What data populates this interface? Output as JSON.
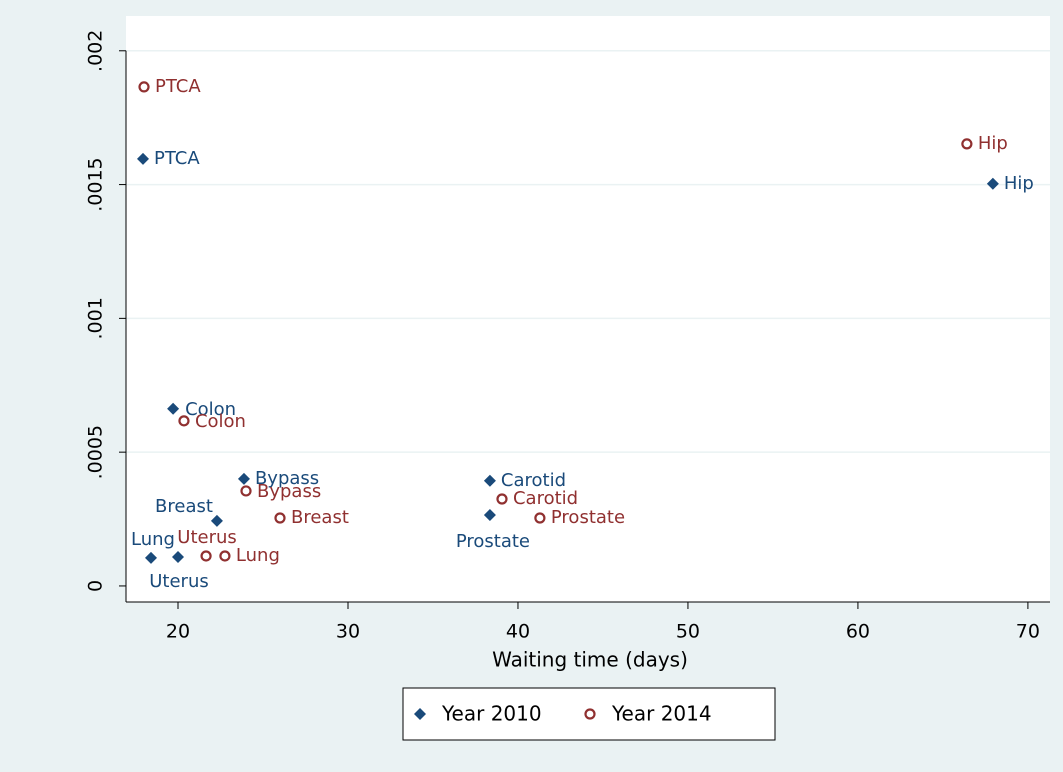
{
  "chart_data": {
    "type": "scatter",
    "x_label": "Waiting time (days)",
    "xlim": [
      16.94,
      71.3
    ],
    "xticks": [
      20,
      30,
      40,
      50,
      60,
      70
    ],
    "ylim": [
      -6e-05,
      0.00213
    ],
    "yticks": [
      {
        "value": 0,
        "label": "0"
      },
      {
        "value": 0.0005,
        "label": ".0005"
      },
      {
        "value": 0.001,
        "label": ".001"
      },
      {
        "value": 0.0015,
        "label": ".0015"
      },
      {
        "value": 0.002,
        "label": ".002"
      }
    ],
    "grid": true,
    "legend": "bottom",
    "series": [
      {
        "name": "Year 2010",
        "color": "#1a4a7a",
        "marker": "diamond",
        "labels": [
          "PTCA",
          "Hip",
          "Colon",
          "Bypass",
          "Carotid",
          "Breast",
          "Prostate",
          "Lung",
          "Uterus"
        ],
        "x": [
          17.94,
          67.94,
          19.71,
          23.88,
          38.35,
          22.29,
          38.35,
          18.41,
          20.0
        ],
        "values": [
          0.001596,
          0.001503,
          0.000662,
          0.0004,
          0.000393,
          0.000243,
          0.000265,
          0.000105,
          0.000108
        ]
      },
      {
        "name": "Year 2014",
        "color": "#903030",
        "marker": "circle",
        "labels": [
          "PTCA",
          "Hip",
          "Colon",
          "Bypass",
          "Carotid",
          "Breast",
          "Prostate",
          "Lung",
          "Uterus"
        ],
        "x": [
          18.0,
          66.41,
          20.35,
          24.0,
          39.06,
          26.0,
          41.29,
          22.76,
          21.65
        ],
        "values": [
          0.001865,
          0.001652,
          0.000617,
          0.000355,
          0.000325,
          0.000254,
          0.000254,
          0.000112,
          0.000112
        ]
      }
    ]
  }
}
